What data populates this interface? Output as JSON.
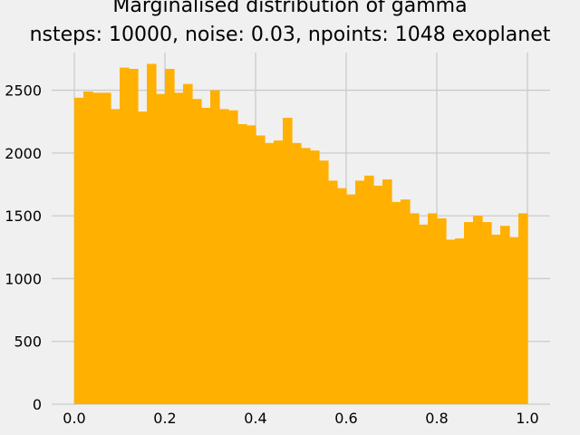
{
  "chart_data": {
    "type": "bar",
    "title_line1": "Marginalised distribution of gamma",
    "title_line2": "nsteps: 10000, noise: 0.03, npoints: 1048 exoplanet",
    "xlabel": "",
    "ylabel": "",
    "xlim": [
      -0.05,
      1.05
    ],
    "ylim": [
      0,
      2800
    ],
    "xticks": [
      0.0,
      0.2,
      0.4,
      0.6,
      0.8,
      1.0
    ],
    "xtick_labels": [
      "0.0",
      "0.2",
      "0.4",
      "0.6",
      "0.8",
      "1.0"
    ],
    "yticks": [
      0,
      500,
      1000,
      1500,
      2000,
      2500
    ],
    "ytick_labels": [
      "0",
      "500",
      "1000",
      "1500",
      "2000",
      "2500"
    ],
    "grid": true,
    "bin_range": [
      0,
      1
    ],
    "values": [
      2440,
      2490,
      2480,
      2480,
      2350,
      2680,
      2670,
      2330,
      2710,
      2470,
      2670,
      2480,
      2550,
      2430,
      2360,
      2500,
      2350,
      2340,
      2230,
      2220,
      2140,
      2080,
      2100,
      2280,
      2080,
      2040,
      2020,
      1940,
      1780,
      1720,
      1670,
      1780,
      1820,
      1740,
      1790,
      1610,
      1630,
      1520,
      1430,
      1520,
      1480,
      1310,
      1320,
      1450,
      1500,
      1450,
      1350,
      1420,
      1330,
      1520
    ],
    "bar_color": "#FFB000",
    "background_color": "#F0F0F0",
    "grid_color": "#CBCBCB"
  }
}
